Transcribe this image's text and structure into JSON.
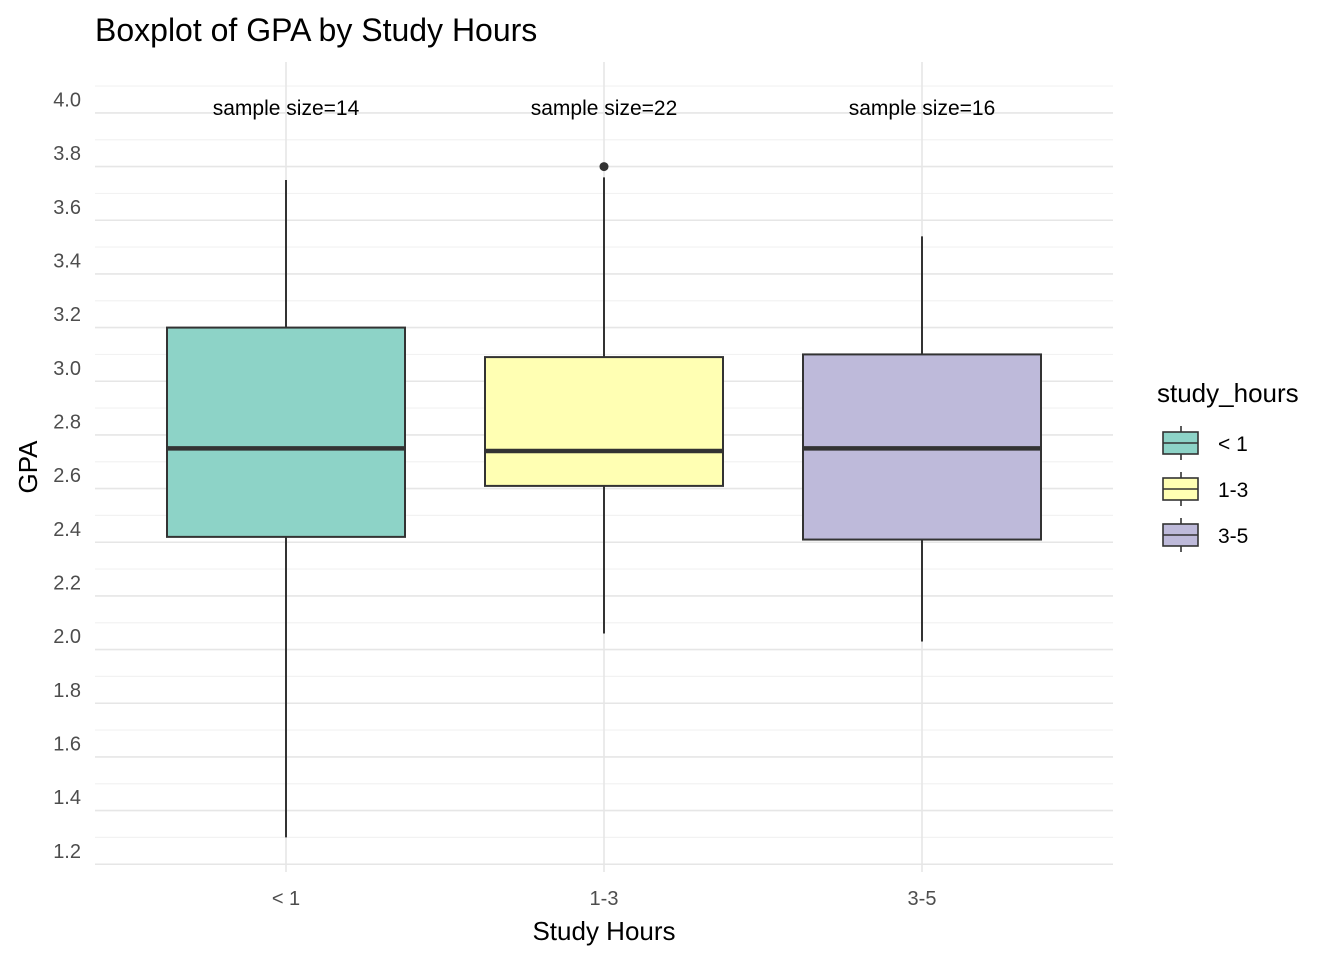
{
  "chart_data": {
    "type": "boxplot",
    "title": "Boxplot of GPA by Study Hours",
    "xlabel": "Study Hours",
    "ylabel": "GPA",
    "ylim": [
      1.15,
      4.1
    ],
    "yticks": [
      1.2,
      1.4,
      1.6,
      1.8,
      2.0,
      2.2,
      2.4,
      2.6,
      2.8,
      3.0,
      3.2,
      3.4,
      3.6,
      3.8,
      4.0
    ],
    "ytick_labels": [
      "1.2",
      "1.4",
      "1.6",
      "1.8",
      "2.0",
      "2.2",
      "2.4",
      "2.6",
      "2.8",
      "3.0",
      "3.2",
      "3.4",
      "3.6",
      "3.8",
      "4.0"
    ],
    "grid": true,
    "categories": [
      "< 1",
      "1-3",
      "3-5"
    ],
    "boxes": [
      {
        "category": "< 1",
        "min": 1.25,
        "q1": 2.37,
        "median": 2.7,
        "q3": 3.15,
        "max": 3.7,
        "outliers": [],
        "color": "#8dd3c7",
        "annotation": "sample size=14"
      },
      {
        "category": "1-3",
        "min": 2.01,
        "q1": 2.56,
        "median": 2.69,
        "q3": 3.04,
        "max": 3.71,
        "outliers": [
          3.75
        ],
        "color": "#ffffb3",
        "annotation": "sample size=22"
      },
      {
        "category": "3-5",
        "min": 1.98,
        "q1": 2.36,
        "median": 2.7,
        "q3": 3.05,
        "max": 3.49,
        "outliers": [],
        "color": "#bebada",
        "annotation": "sample size=16"
      }
    ],
    "annotation_y": 3.95,
    "legend": {
      "title": "study_hours",
      "position": "right",
      "items": [
        {
          "label": "< 1",
          "color": "#8dd3c7"
        },
        {
          "label": "1-3",
          "color": "#ffffb3"
        },
        {
          "label": "3-5",
          "color": "#bebada"
        }
      ]
    }
  }
}
